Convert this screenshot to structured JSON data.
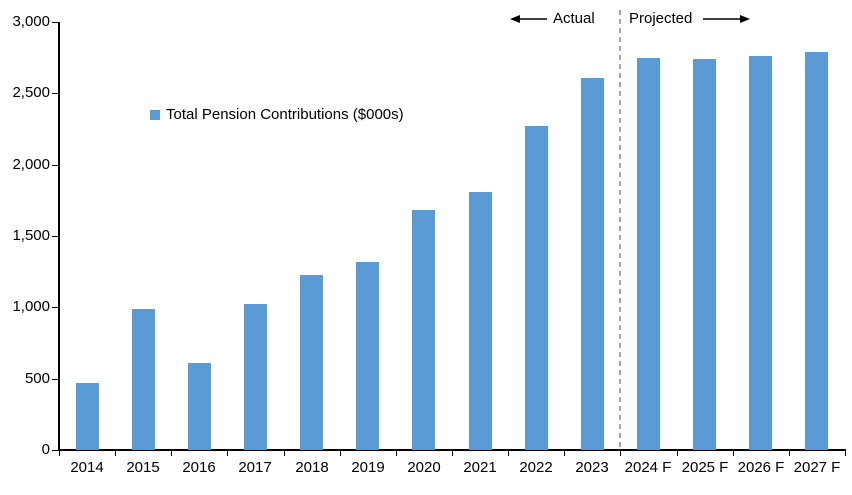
{
  "chart_data": {
    "type": "bar",
    "title": "",
    "legend_label": "Total Pension Contributions ($000s)",
    "legend_position": "inside-upper-left",
    "categories": [
      "2014",
      "2015",
      "2016",
      "2017",
      "2018",
      "2019",
      "2020",
      "2021",
      "2022",
      "2023",
      "2024 F",
      "2025 F",
      "2026 F",
      "2027 F"
    ],
    "values": [
      470,
      990,
      610,
      1020,
      1230,
      1320,
      1680,
      1810,
      2270,
      2610,
      2750,
      2740,
      2760,
      2790
    ],
    "xlabel": "",
    "ylabel": "",
    "ylim": [
      0,
      3000
    ],
    "yticks": [
      {
        "value": 0,
        "label": "0"
      },
      {
        "value": 500,
        "label": "500"
      },
      {
        "value": 1000,
        "label": "1,000"
      },
      {
        "value": 1500,
        "label": "1,500"
      },
      {
        "value": 2000,
        "label": "2,000"
      },
      {
        "value": 2500,
        "label": "2,500"
      },
      {
        "value": 3000,
        "label": "3,000"
      }
    ],
    "grid": false,
    "bar_color": "#5B9BD5",
    "axis_color": "#000000",
    "text_color": "#000000",
    "separator": {
      "after_index": 9,
      "color": "#A6A6A6",
      "style": "dashed"
    },
    "annotations": {
      "actual_label": "Actual",
      "projected_label": "Projected"
    }
  }
}
